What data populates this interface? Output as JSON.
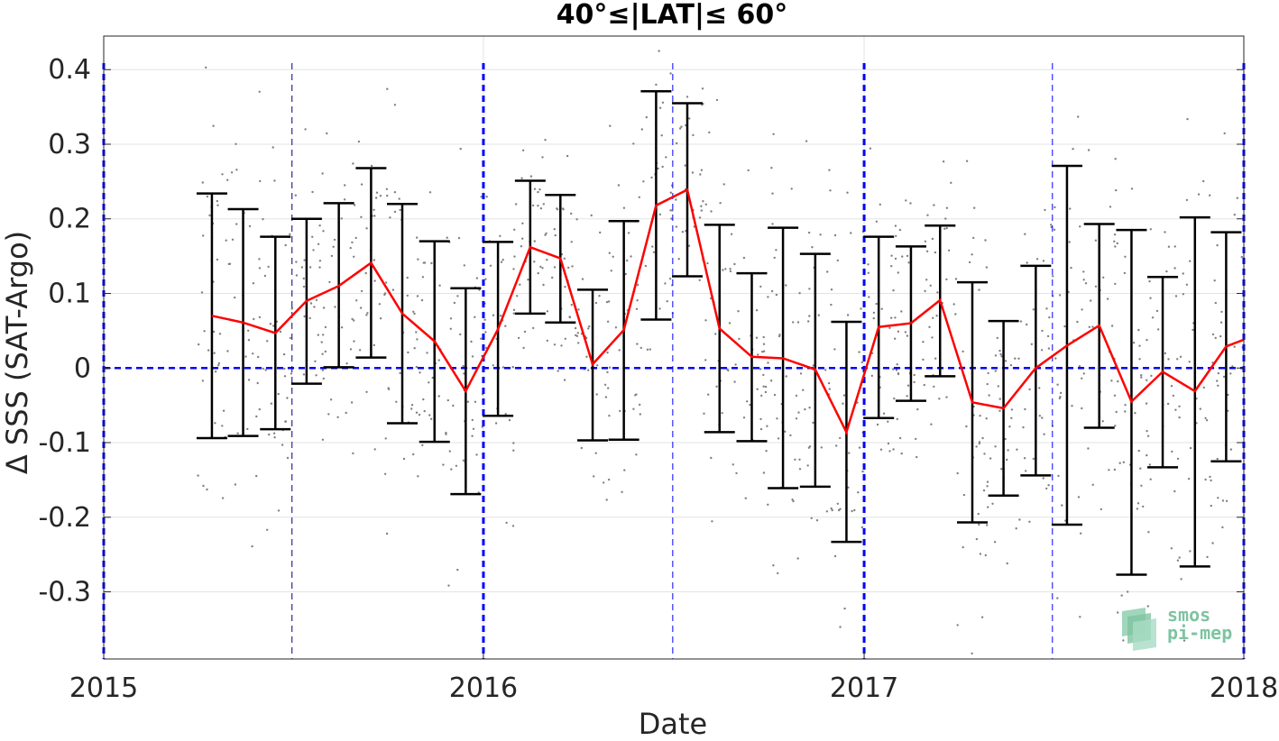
{
  "chart_data": {
    "type": "scatter",
    "title": "40°≤|LAT|≤ 60°",
    "xlabel": "Date",
    "ylabel": "Δ SSS (SAT-Argo)",
    "xlim": [
      "2015-01-01",
      "2018-01-01"
    ],
    "ylim": [
      -0.39,
      0.445
    ],
    "x_ticks": [
      "2015",
      "2016",
      "2017",
      "2018"
    ],
    "y_ticks": [
      0.4,
      0.3,
      0.2,
      0.1,
      0,
      -0.1,
      -0.2,
      -0.3
    ],
    "y_tick_labels": [
      "0.4",
      "0.3",
      "0.2",
      "0.1",
      "0",
      "-0.1",
      "-0.2",
      "-0.3"
    ],
    "grid": true,
    "zero_line": 0,
    "year_marker_lines": [
      "2015-01-01",
      "2016-01-01",
      "2017-01-01",
      "2018-01-01"
    ],
    "midyear_marker_lines": [
      "2015-07-01",
      "2016-07-01",
      "2017-07-01"
    ],
    "series": [
      {
        "style": "errorbar-line",
        "color": "#ff0000",
        "errorbar_color": "#000000",
        "dates": [
          "2015-04-15",
          "2015-05-15",
          "2015-06-15",
          "2015-07-15",
          "2015-08-15",
          "2015-09-15",
          "2015-10-15",
          "2015-11-15",
          "2015-12-15",
          "2016-01-15",
          "2016-02-15",
          "2016-03-15",
          "2016-04-15",
          "2016-05-15",
          "2016-06-15",
          "2016-07-15",
          "2016-08-15",
          "2016-09-15",
          "2016-10-15",
          "2016-11-15",
          "2016-12-15",
          "2017-01-15",
          "2017-02-15",
          "2017-03-15",
          "2017-04-15",
          "2017-05-15",
          "2017-06-15",
          "2017-07-15",
          "2017-08-15",
          "2017-09-15",
          "2017-10-15",
          "2017-11-15",
          "2017-12-15"
        ],
        "mean": [
          0.07,
          0.061,
          0.047,
          0.09,
          0.11,
          0.141,
          0.073,
          0.036,
          -0.031,
          0.052,
          0.162,
          0.147,
          0.005,
          0.051,
          0.218,
          0.239,
          0.053,
          0.015,
          0.013,
          -0.002,
          -0.086,
          0.055,
          0.06,
          0.091,
          -0.046,
          -0.054,
          0.0,
          0.03,
          0.057,
          -0.045,
          -0.005,
          -0.031,
          0.029
        ],
        "upper": [
          0.234,
          0.213,
          0.176,
          0.2,
          0.221,
          0.268,
          0.22,
          0.17,
          0.107,
          0.169,
          0.251,
          0.232,
          0.105,
          0.197,
          0.371,
          0.355,
          0.192,
          0.127,
          0.188,
          0.153,
          0.062,
          0.176,
          0.163,
          0.191,
          0.115,
          0.063,
          0.137,
          0.271,
          0.193,
          0.185,
          0.122,
          0.202,
          0.182
        ],
        "lower": [
          -0.094,
          -0.091,
          -0.082,
          -0.021,
          0.001,
          0.014,
          -0.074,
          -0.099,
          -0.169,
          -0.064,
          0.073,
          0.061,
          -0.097,
          -0.096,
          0.065,
          0.123,
          -0.086,
          -0.098,
          -0.161,
          -0.159,
          -0.233,
          -0.067,
          -0.044,
          -0.011,
          -0.207,
          -0.171,
          -0.144,
          -0.21,
          -0.08,
          -0.277,
          -0.133,
          -0.266,
          -0.125
        ]
      },
      {
        "style": "end-point",
        "color": "#ff0000",
        "dates": [
          "2018-01-01"
        ],
        "mean": [
          0.038
        ]
      }
    ],
    "scatter_color": "#808080",
    "logo_text": [
      "smos",
      "pi-mep"
    ]
  }
}
